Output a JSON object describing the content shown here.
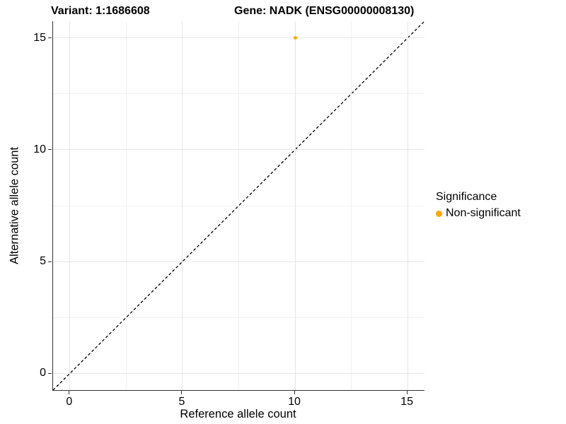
{
  "header": {
    "variant_title": "Variant: 1:1686608",
    "gene_title": "Gene: NADK (ENSG00000008130)"
  },
  "chart_data": {
    "type": "scatter",
    "titles": [
      "Variant: 1:1686608",
      "Gene: NADK (ENSG00000008130)"
    ],
    "xlabel": "Reference allele count",
    "ylabel": "Alternative allele count",
    "xlim": [
      -0.75,
      15.75
    ],
    "ylim": [
      -0.75,
      15.75
    ],
    "x_major_ticks": [
      0,
      5,
      10,
      15
    ],
    "y_major_ticks": [
      0,
      5,
      10,
      15
    ],
    "x_minor_gridlines": [
      2.5,
      7.5,
      12.5
    ],
    "y_minor_gridlines": [
      2.5,
      7.5,
      12.5
    ],
    "grid": "major-and-minor",
    "points": [
      {
        "x": 10,
        "y": 15,
        "series": "Non-significant",
        "color": "#FFA500"
      }
    ],
    "reference_line": {
      "type": "identity",
      "style": "dashed",
      "x1": -0.75,
      "y1": -0.75,
      "x2": 15.75,
      "y2": 15.75,
      "color": "#000000"
    },
    "legend": {
      "title": "Significance",
      "position": "right",
      "entries": [
        {
          "label": "Non-significant",
          "color": "#FFA500"
        }
      ]
    }
  },
  "colors": {
    "point": "#FFA500",
    "grid_major": "#E6E6E6",
    "grid_minor": "#F1F1F1",
    "axis_line": "#333333",
    "text": "#000000",
    "background": "#FFFFFF"
  }
}
